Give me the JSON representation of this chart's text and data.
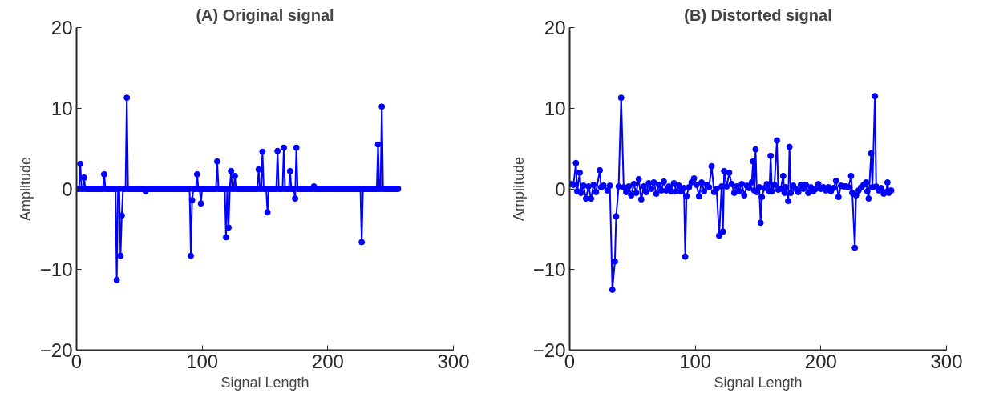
{
  "chart_data": [
    {
      "type": "line",
      "title": "(A) Original signal",
      "xlabel": "Signal Length",
      "ylabel": "Amplitude",
      "xlim": [
        0,
        300
      ],
      "ylim": [
        -20,
        20
      ],
      "xticks": [
        0,
        100,
        200,
        300
      ],
      "yticks": [
        -20,
        -10,
        0,
        10,
        20
      ],
      "grid": false,
      "marker": "circle",
      "line_style": "solid",
      "series": [
        {
          "color": "#0000ff",
          "x": [
            1,
            2,
            3,
            4,
            5,
            6,
            7,
            8,
            9,
            10,
            11,
            12,
            13,
            14,
            15,
            16,
            17,
            18,
            19,
            20,
            21,
            22,
            23,
            24,
            25,
            26,
            27,
            28,
            29,
            30,
            31,
            32,
            33,
            34,
            35,
            36,
            37,
            38,
            39,
            40,
            41,
            42,
            43,
            44,
            45,
            46,
            47,
            48,
            49,
            50,
            51,
            52,
            53,
            54,
            55,
            56,
            57,
            58,
            59,
            60,
            61,
            62,
            63,
            64,
            65,
            66,
            67,
            68,
            69,
            70,
            71,
            72,
            73,
            74,
            75,
            76,
            77,
            78,
            79,
            80,
            81,
            82,
            83,
            84,
            85,
            86,
            87,
            88,
            89,
            90,
            91,
            92,
            93,
            94,
            95,
            96,
            97,
            98,
            99,
            100,
            101,
            102,
            103,
            104,
            105,
            106,
            107,
            108,
            109,
            110,
            111,
            112,
            113,
            114,
            115,
            116,
            117,
            118,
            119,
            120,
            121,
            122,
            123,
            124,
            125,
            126,
            127,
            128,
            129,
            130,
            131,
            132,
            133,
            134,
            135,
            136,
            137,
            138,
            139,
            140,
            141,
            142,
            143,
            144,
            145,
            146,
            147,
            148,
            149,
            150,
            151,
            152,
            153,
            154,
            155,
            156,
            157,
            158,
            159,
            160,
            161,
            162,
            163,
            164,
            165,
            166,
            167,
            168,
            169,
            170,
            171,
            172,
            173,
            174,
            175,
            176,
            177,
            178,
            179,
            180,
            181,
            182,
            183,
            184,
            185,
            186,
            187,
            188,
            189,
            190,
            191,
            192,
            193,
            194,
            195,
            196,
            197,
            198,
            199,
            200,
            201,
            202,
            203,
            204,
            205,
            206,
            207,
            208,
            209,
            210,
            211,
            212,
            213,
            214,
            215,
            216,
            217,
            218,
            219,
            220,
            221,
            222,
            223,
            224,
            225,
            226,
            227,
            228,
            229,
            230,
            231,
            232,
            233,
            234,
            235,
            236,
            237,
            238,
            239,
            240,
            241,
            242,
            243,
            244,
            245,
            246,
            247,
            248,
            249,
            250,
            251,
            252,
            253,
            254,
            255,
            256
          ],
          "values": [
            0,
            0,
            3.1,
            0,
            0,
            1.4,
            0,
            0,
            0,
            0,
            0,
            0,
            0,
            0,
            0,
            0,
            0,
            0,
            0,
            0,
            0,
            1.8,
            0,
            0,
            0,
            0,
            0,
            0,
            0,
            0,
            0,
            -11.3,
            0,
            0,
            -8.3,
            -3.3,
            0,
            0,
            0,
            11.3,
            0,
            0,
            0,
            0,
            0,
            0,
            0,
            0,
            0,
            0,
            0,
            0,
            0,
            0,
            -0.3,
            0,
            0,
            0,
            0,
            0,
            0,
            0,
            0,
            0,
            0,
            0,
            0,
            0,
            0,
            0,
            0,
            0,
            0,
            0,
            0,
            0,
            0,
            0,
            0,
            0,
            0,
            0,
            0,
            0,
            0,
            0,
            0,
            0,
            0,
            0,
            -8.3,
            -1.4,
            0,
            0,
            0,
            1.8,
            0,
            0,
            -1.8,
            0,
            0,
            0,
            0,
            0,
            0,
            0,
            0,
            0,
            0,
            0,
            0,
            3.4,
            0,
            0,
            0,
            0,
            0,
            0,
            -6,
            0,
            -4.8,
            0,
            2.2,
            0,
            0,
            1.6,
            0,
            0,
            0,
            0,
            0,
            0,
            0,
            0,
            0,
            0,
            0,
            0,
            0,
            0,
            0,
            0,
            0,
            0,
            2.4,
            0,
            0,
            4.6,
            0,
            0,
            0,
            -2.9,
            0,
            0,
            0,
            0,
            0,
            0,
            0,
            4.7,
            0,
            0,
            0,
            0,
            5.1,
            0,
            0,
            0,
            0,
            2.2,
            0,
            0,
            0,
            -1.2,
            5.1,
            0,
            0,
            0,
            0,
            0,
            0,
            0,
            0,
            0,
            0,
            0,
            0,
            0,
            0.3,
            0,
            0,
            0,
            0,
            0,
            0,
            0,
            0,
            0,
            0,
            0,
            0,
            0,
            0,
            0,
            0,
            0,
            0,
            0,
            0,
            0,
            0,
            0,
            0,
            0,
            0,
            0,
            0,
            0,
            0,
            0,
            0,
            0,
            0,
            0,
            0,
            0,
            -6.6,
            0,
            0,
            0,
            0,
            0,
            0,
            0,
            0,
            0,
            0,
            0,
            0,
            5.5,
            0,
            0,
            10.2,
            0,
            0,
            0,
            0,
            0,
            0,
            0,
            0,
            0,
            0,
            0,
            0,
            0
          ]
        }
      ]
    },
    {
      "type": "line",
      "title": "(B) Distorted signal",
      "xlabel": "Signal Length",
      "ylabel": "Amplitude",
      "xlim": [
        0,
        300
      ],
      "ylim": [
        -20,
        20
      ],
      "xticks": [
        0,
        100,
        200,
        300
      ],
      "yticks": [
        -20,
        -10,
        0,
        10,
        20
      ],
      "grid": false,
      "marker": "circle",
      "line_style": "solid",
      "series": [
        {
          "color": "#0000ff",
          "x": [
            1,
            3,
            5,
            6,
            8,
            9,
            11,
            13,
            15,
            17,
            19,
            21,
            24,
            25,
            27,
            30,
            32,
            34,
            36,
            37,
            39,
            41,
            43,
            45,
            47,
            49,
            51,
            53,
            55,
            57,
            59,
            61,
            63,
            65,
            67,
            69,
            71,
            73,
            75,
            77,
            79,
            81,
            83,
            85,
            87,
            89,
            91,
            92,
            93,
            95,
            97,
            99,
            101,
            103,
            105,
            107,
            109,
            111,
            113,
            115,
            117,
            119,
            121,
            122,
            123,
            125,
            127,
            129,
            131,
            133,
            135,
            137,
            139,
            141,
            143,
            145,
            146,
            147,
            148,
            149,
            151,
            152,
            153,
            155,
            157,
            159,
            160,
            161,
            163,
            165,
            166,
            168,
            170,
            171,
            172,
            174,
            175,
            176,
            178,
            180,
            182,
            184,
            186,
            188,
            190,
            192,
            194,
            196,
            198,
            200,
            202,
            204,
            206,
            208,
            210,
            212,
            214,
            216,
            218,
            220,
            222,
            224,
            225,
            227,
            228,
            230,
            232,
            234,
            236,
            237,
            238,
            240,
            241,
            243,
            244,
            246,
            248,
            250,
            252,
            253,
            254,
            256
          ],
          "values": [
            0.6,
            0.5,
            3.2,
            -0.3,
            2.0,
            -0.5,
            0.4,
            -1.2,
            0.3,
            -1.2,
            0.5,
            -0.4,
            2.3,
            0.2,
            0.4,
            -0.2,
            0.4,
            -12.5,
            -9,
            -3.4,
            0.3,
            11.3,
            0.2,
            -0.4,
            0.3,
            -0.8,
            0.6,
            -0.5,
            1.2,
            -1.3,
            0.3,
            -0.4,
            0.7,
            0.0,
            0.8,
            -0.6,
            0.5,
            -0.2,
            0.9,
            -0.2,
            0.3,
            -0.3,
            0.7,
            -0.3,
            0.4,
            -0.3,
            0.1,
            -8.4,
            -0.9,
            0.2,
            0.8,
            1.3,
            0.5,
            -0.9,
            0.8,
            -0.3,
            0.5,
            0.2,
            2.8,
            -0.4,
            0.0,
            -5.8,
            0.3,
            -5.3,
            2.2,
            0.3,
            2.0,
            0.6,
            -0.5,
            0.3,
            -0.3,
            0.6,
            -0.8,
            0.4,
            0.1,
            0.8,
            3.4,
            -0.2,
            4.9,
            -0.4,
            0.2,
            -4.2,
            -1.0,
            0.1,
            0.6,
            -0.3,
            4.1,
            -0.3,
            0.5,
            6.0,
            -0.1,
            0.0,
            1.6,
            -0.5,
            0.2,
            -1.5,
            5.2,
            -0.5,
            0.4,
            0.0,
            -0.4,
            0.5,
            0.0,
            0.5,
            -0.5,
            0.2,
            -0.3,
            0.0,
            0.6,
            0.0,
            0.2,
            -0.2,
            0.2,
            -0.3,
            0.1,
            1.0,
            -1.0,
            0.4,
            0.3,
            0.3,
            0.2,
            1.6,
            -0.5,
            -7.3,
            -0.8,
            -0.2,
            0.2,
            0.5,
            0.8,
            -0.3,
            -1.2,
            4.4,
            0.2,
            11.5,
            0.3,
            -0.2,
            0.1,
            -0.6,
            -0.4,
            0.8,
            -0.5,
            -0.2
          ]
        }
      ]
    }
  ]
}
